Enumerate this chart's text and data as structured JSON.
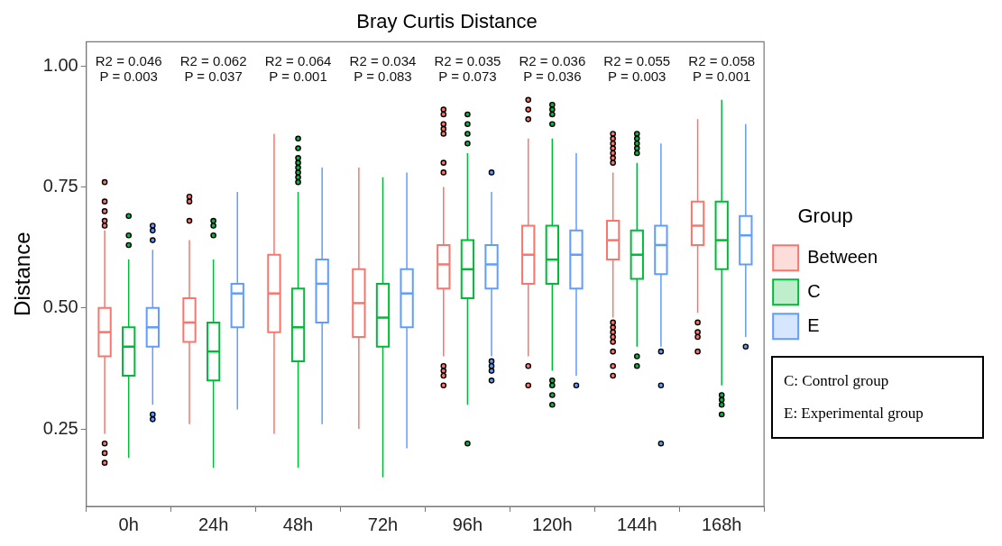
{
  "chart_data": {
    "type": "box",
    "title": "Bray Curtis Distance",
    "ylabel": "Distance",
    "legend_title": "Group",
    "legend": "right",
    "categories": [
      "0h",
      "24h",
      "48h",
      "72h",
      "96h",
      "120h",
      "144h",
      "168h"
    ],
    "ylim": [
      0.09,
      1.05
    ],
    "yticks": [
      0.25,
      {
        "value": 0.5,
        "label": "0.50"
      },
      0.75,
      {
        "value": 1,
        "label": "1.00"
      }
    ],
    "series": [
      {
        "name": "Between",
        "color": "#f8766d",
        "boxes": [
          {
            "low": 0.24,
            "q1": 0.4,
            "median": 0.45,
            "q3": 0.5,
            "high": 0.66,
            "outliers": [
              0.76,
              0.72,
              0.7,
              0.68,
              0.67,
              0.22,
              0.2,
              0.18
            ]
          },
          {
            "low": 0.26,
            "q1": 0.43,
            "median": 0.47,
            "q3": 0.52,
            "high": 0.64,
            "outliers": [
              0.73,
              0.72,
              0.68
            ]
          },
          {
            "low": 0.24,
            "q1": 0.45,
            "median": 0.53,
            "q3": 0.61,
            "high": 0.86
          },
          {
            "low": 0.25,
            "q1": 0.44,
            "median": 0.51,
            "q3": 0.58,
            "high": 0.79
          },
          {
            "low": 0.4,
            "q1": 0.54,
            "median": 0.59,
            "q3": 0.63,
            "high": 0.75,
            "outliers": [
              0.91,
              0.9,
              0.88,
              0.87,
              0.86,
              0.8,
              0.78,
              0.38,
              0.37,
              0.36,
              0.34
            ]
          },
          {
            "low": 0.4,
            "q1": 0.55,
            "median": 0.61,
            "q3": 0.67,
            "high": 0.85,
            "outliers": [
              0.93,
              0.91,
              0.89,
              0.38,
              0.34
            ]
          },
          {
            "low": 0.48,
            "q1": 0.6,
            "median": 0.64,
            "q3": 0.68,
            "high": 0.78,
            "outliers": [
              0.86,
              0.85,
              0.84,
              0.83,
              0.82,
              0.81,
              0.8,
              0.47,
              0.46,
              0.45,
              0.44,
              0.43,
              0.41,
              0.38,
              0.36
            ]
          },
          {
            "low": 0.49,
            "q1": 0.63,
            "median": 0.67,
            "q3": 0.72,
            "high": 0.89,
            "outliers": [
              0.47,
              0.45,
              0.44,
              0.41
            ]
          }
        ]
      },
      {
        "name": "C",
        "color": "#00ba38",
        "boxes": [
          {
            "low": 0.19,
            "q1": 0.36,
            "median": 0.42,
            "q3": 0.46,
            "high": 0.6,
            "outliers": [
              0.69,
              0.65,
              0.63
            ]
          },
          {
            "low": 0.17,
            "q1": 0.35,
            "median": 0.41,
            "q3": 0.47,
            "high": 0.6,
            "outliers": [
              0.68,
              0.67,
              0.65
            ]
          },
          {
            "low": 0.17,
            "q1": 0.39,
            "median": 0.46,
            "q3": 0.54,
            "high": 0.74,
            "outliers": [
              0.85,
              0.83,
              0.81,
              0.8,
              0.79,
              0.78,
              0.77,
              0.76
            ]
          },
          {
            "low": 0.15,
            "q1": 0.42,
            "median": 0.48,
            "q3": 0.55,
            "high": 0.77
          },
          {
            "low": 0.3,
            "q1": 0.52,
            "median": 0.58,
            "q3": 0.64,
            "high": 0.82,
            "outliers": [
              0.9,
              0.88,
              0.86,
              0.84,
              0.22
            ]
          },
          {
            "low": 0.37,
            "q1": 0.55,
            "median": 0.6,
            "q3": 0.67,
            "high": 0.85,
            "outliers": [
              0.92,
              0.91,
              0.9,
              0.88,
              0.35,
              0.34,
              0.32,
              0.3
            ]
          },
          {
            "low": 0.42,
            "q1": 0.56,
            "median": 0.61,
            "q3": 0.66,
            "high": 0.8,
            "outliers": [
              0.86,
              0.85,
              0.84,
              0.83,
              0.82,
              0.4,
              0.38
            ]
          },
          {
            "low": 0.34,
            "q1": 0.58,
            "median": 0.64,
            "q3": 0.72,
            "high": 0.93,
            "outliers": [
              0.32,
              0.31,
              0.3,
              0.28
            ]
          }
        ]
      },
      {
        "name": "E",
        "color": "#619cff",
        "boxes": [
          {
            "low": 0.3,
            "q1": 0.42,
            "median": 0.46,
            "q3": 0.5,
            "high": 0.62,
            "outliers": [
              0.67,
              0.66,
              0.64,
              0.28,
              0.27
            ]
          },
          {
            "low": 0.29,
            "q1": 0.46,
            "median": 0.53,
            "q3": 0.55,
            "high": 0.74
          },
          {
            "low": 0.26,
            "q1": 0.47,
            "median": 0.55,
            "q3": 0.6,
            "high": 0.79
          },
          {
            "low": 0.21,
            "q1": 0.46,
            "median": 0.53,
            "q3": 0.58,
            "high": 0.78
          },
          {
            "low": 0.4,
            "q1": 0.54,
            "median": 0.59,
            "q3": 0.63,
            "high": 0.74,
            "outliers": [
              0.78,
              0.39,
              0.38,
              0.37,
              0.35
            ]
          },
          {
            "low": 0.36,
            "q1": 0.54,
            "median": 0.61,
            "q3": 0.66,
            "high": 0.82,
            "outliers": [
              0.34
            ]
          },
          {
            "low": 0.42,
            "q1": 0.57,
            "median": 0.63,
            "q3": 0.67,
            "high": 0.84,
            "outliers": [
              0.41,
              0.34,
              0.22
            ]
          },
          {
            "low": 0.44,
            "q1": 0.59,
            "median": 0.65,
            "q3": 0.69,
            "high": 0.88,
            "outliers": [
              0.42
            ]
          }
        ]
      }
    ],
    "annotations": [
      "R2 = 0.046\nP = 0.003",
      "R2 = 0.062\nP = 0.037",
      "R2 = 0.064\nP = 0.001",
      "R2 = 0.034\nP = 0.083",
      "R2 = 0.035\nP = 0.073",
      "R2 = 0.036\nP = 0.036",
      "R2 = 0.055\nP = 0.003",
      "R2 = 0.058\nP = 0.001",
      "C: Control group",
      "E: Experimental group"
    ]
  }
}
